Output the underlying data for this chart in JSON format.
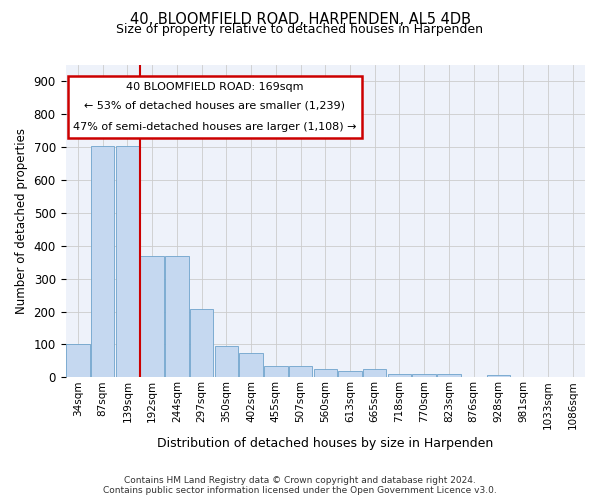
{
  "title": "40, BLOOMFIELD ROAD, HARPENDEN, AL5 4DB",
  "subtitle": "Size of property relative to detached houses in Harpenden",
  "xlabel": "Distribution of detached houses by size in Harpenden",
  "ylabel": "Number of detached properties",
  "categories": [
    "34sqm",
    "87sqm",
    "139sqm",
    "192sqm",
    "244sqm",
    "297sqm",
    "350sqm",
    "402sqm",
    "455sqm",
    "507sqm",
    "560sqm",
    "613sqm",
    "665sqm",
    "718sqm",
    "770sqm",
    "823sqm",
    "876sqm",
    "928sqm",
    "981sqm",
    "1033sqm",
    "1086sqm"
  ],
  "values": [
    100,
    705,
    705,
    370,
    370,
    207,
    96,
    73,
    33,
    33,
    25,
    20,
    25,
    10,
    10,
    10,
    0,
    8,
    0,
    0,
    0
  ],
  "bar_color": "#c5d8f0",
  "bar_edgecolor": "#6ea3cc",
  "vline_x": 2.5,
  "vline_color": "#cc0000",
  "annotation_line1": "40 BLOOMFIELD ROAD: 169sqm",
  "annotation_line2": "← 53% of detached houses are smaller (1,239)",
  "annotation_line3": "47% of semi-detached houses are larger (1,108) →",
  "annotation_box_edgecolor": "#cc0000",
  "ylim": [
    0,
    950
  ],
  "yticks": [
    0,
    100,
    200,
    300,
    400,
    500,
    600,
    700,
    800,
    900
  ],
  "grid_color": "#cccccc",
  "bg_color": "#eef2fa",
  "footer1": "Contains HM Land Registry data © Crown copyright and database right 2024.",
  "footer2": "Contains public sector information licensed under the Open Government Licence v3.0."
}
